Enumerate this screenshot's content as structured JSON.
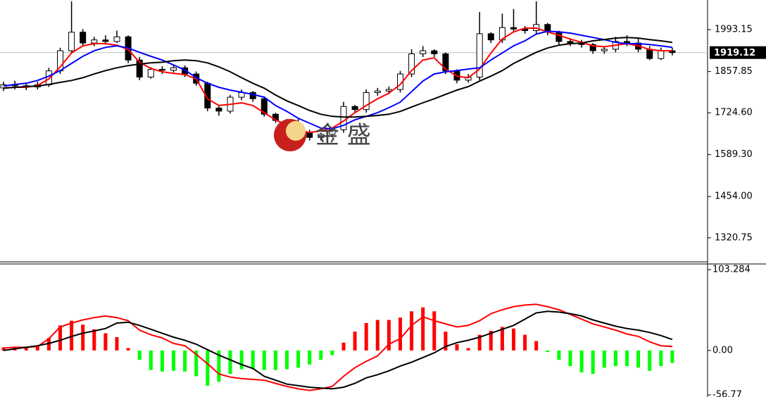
{
  "chart_data": [
    {
      "type": "candlestick",
      "open": [
        1805,
        1815,
        1812,
        1808,
        1815,
        1860,
        1925,
        1985,
        1950,
        1960,
        1955,
        1970,
        1895,
        1840,
        1865,
        1862,
        1870,
        1850,
        1820,
        1740,
        1730,
        1775,
        1790,
        1770,
        1720,
        1700,
        1675,
        1660,
        1645,
        1655,
        1670,
        1745,
        1735,
        1790,
        1795,
        1800,
        1850,
        1915,
        1925,
        1915,
        1860,
        1830,
        1840,
        1980,
        1960,
        2000,
        1995,
        1990,
        2010,
        1985,
        1955,
        1950,
        1945,
        1925,
        1930,
        1955,
        1950,
        1930,
        1900,
        1925
      ],
      "high": [
        1825,
        1828,
        1822,
        1825,
        1870,
        1935,
        2085,
        1995,
        1970,
        1975,
        1990,
        1975,
        1905,
        1872,
        1875,
        1880,
        1878,
        1858,
        1825,
        1748,
        1782,
        1800,
        1795,
        1778,
        1725,
        1705,
        1705,
        1670,
        1660,
        1675,
        1760,
        1750,
        1800,
        1805,
        1810,
        1860,
        1930,
        1940,
        1930,
        1920,
        1865,
        1850,
        2050,
        1985,
        2045,
        2060,
        2005,
        2085,
        2015,
        1990,
        1965,
        1960,
        1950,
        1940,
        1970,
        1975,
        1965,
        1940,
        1935,
        1935
      ],
      "low": [
        1795,
        1800,
        1798,
        1800,
        1808,
        1850,
        1915,
        1940,
        1940,
        1945,
        1950,
        1885,
        1830,
        1835,
        1850,
        1855,
        1840,
        1812,
        1730,
        1715,
        1722,
        1765,
        1760,
        1712,
        1692,
        1665,
        1650,
        1635,
        1635,
        1645,
        1660,
        1725,
        1725,
        1780,
        1785,
        1790,
        1840,
        1905,
        1905,
        1850,
        1820,
        1822,
        1830,
        1950,
        1950,
        1985,
        1980,
        1980,
        1975,
        1945,
        1940,
        1935,
        1915,
        1915,
        1920,
        1940,
        1920,
        1895,
        1895,
        1910
      ],
      "close": [
        1815,
        1812,
        1808,
        1815,
        1860,
        1925,
        1985,
        1950,
        1960,
        1955,
        1970,
        1895,
        1840,
        1865,
        1862,
        1870,
        1850,
        1820,
        1740,
        1730,
        1775,
        1790,
        1770,
        1720,
        1700,
        1675,
        1660,
        1645,
        1655,
        1670,
        1745,
        1735,
        1790,
        1795,
        1800,
        1850,
        1915,
        1925,
        1915,
        1860,
        1830,
        1840,
        1980,
        1960,
        2000,
        1995,
        1990,
        2010,
        1985,
        1955,
        1950,
        1945,
        1925,
        1930,
        1955,
        1950,
        1930,
        1900,
        1925,
        1919.12
      ],
      "bull_color": "#ffffff",
      "bear_color": "#000000",
      "series": [
        {
          "color": "#ff0000",
          "values": [
            1804,
            1807,
            1807,
            1813,
            1834,
            1873,
            1918,
            1941,
            1948,
            1948,
            1943,
            1929,
            1888,
            1868,
            1857,
            1852,
            1848,
            1834,
            1770,
            1748,
            1752,
            1757,
            1748,
            1725,
            1702,
            1684,
            1668,
            1661,
            1666,
            1675,
            1698,
            1725,
            1748,
            1770,
            1788,
            1816,
            1861,
            1895,
            1902,
            1866,
            1843,
            1838,
            1866,
            1918,
            1963,
            1986,
            1998,
            1998,
            1986,
            1975,
            1963,
            1952,
            1941,
            1938,
            1943,
            1948,
            1941,
            1929,
            1925,
            1925
          ]
        },
        {
          "color": "#0000ff",
          "values": [
            1811,
            1816,
            1820,
            1829,
            1843,
            1861,
            1884,
            1907,
            1925,
            1936,
            1941,
            1934,
            1920,
            1907,
            1895,
            1879,
            1863,
            1838,
            1820,
            1807,
            1798,
            1791,
            1784,
            1775,
            1748,
            1729,
            1707,
            1691,
            1675,
            1673,
            1684,
            1702,
            1713,
            1725,
            1741,
            1759,
            1793,
            1827,
            1850,
            1857,
            1861,
            1866,
            1870,
            1895,
            1918,
            1941,
            1957,
            1979,
            1988,
            1986,
            1982,
            1975,
            1968,
            1961,
            1952,
            1948,
            1948,
            1945,
            1941,
            1936
          ]
        },
        {
          "color": "#000000",
          "values": [
            1804,
            1807,
            1809,
            1811,
            1816,
            1823,
            1829,
            1838,
            1850,
            1861,
            1870,
            1877,
            1882,
            1886,
            1888,
            1893,
            1895,
            1893,
            1886,
            1873,
            1857,
            1838,
            1820,
            1804,
            1782,
            1763,
            1748,
            1732,
            1720,
            1713,
            1711,
            1711,
            1713,
            1716,
            1720,
            1729,
            1743,
            1757,
            1770,
            1784,
            1798,
            1809,
            1827,
            1843,
            1861,
            1884,
            1902,
            1920,
            1934,
            1943,
            1948,
            1950,
            1957,
            1961,
            1966,
            1968,
            1966,
            1961,
            1957,
            1952
          ]
        }
      ],
      "last_price": 1919.12,
      "ylim": [
        1243,
        2089
      ],
      "yticks": [
        {
          "value": 1993.15,
          "label": "1993.15"
        },
        {
          "value": 1857.85,
          "label": "1857.85"
        },
        {
          "value": 1724.6,
          "label": "1724.60"
        },
        {
          "value": 1589.3,
          "label": "1589.30"
        },
        {
          "value": 1454,
          "label": "1454.00"
        },
        {
          "value": 1320.75,
          "label": "1320.75"
        }
      ],
      "watermark": "金 盛"
    },
    {
      "type": "macd",
      "histogram": [
        4,
        5,
        4,
        5,
        16,
        32,
        38,
        33,
        27,
        22,
        17,
        3,
        -12,
        -25,
        -27,
        -26,
        -27,
        -33,
        -45,
        -40,
        -30,
        -24,
        -24,
        -25,
        -25,
        -24,
        -22,
        -18,
        -12,
        -6,
        10,
        24,
        35,
        39,
        39,
        42,
        50,
        55,
        50,
        24,
        8,
        3,
        20,
        25,
        30,
        28,
        20,
        12,
        -2,
        -12,
        -20,
        -28,
        -30,
        -22,
        -20,
        -20,
        -22,
        -26,
        -20,
        -16
      ],
      "positive_color": "#ff0000",
      "negative_color": "#00ff00",
      "series": [
        {
          "color": "#ff0000",
          "values": [
            3,
            4,
            4,
            5,
            15,
            30,
            35,
            39,
            42,
            44,
            42,
            38,
            26,
            20,
            16,
            9,
            6,
            -5,
            -17,
            -30,
            -34,
            -36,
            -37,
            -38,
            -42,
            -46,
            -49,
            -51,
            -49,
            -46,
            -33,
            -22,
            -14,
            -7,
            8,
            15,
            32,
            43,
            38,
            34,
            30,
            32,
            38,
            47,
            52,
            56,
            58,
            59,
            56,
            52,
            46,
            40,
            34,
            30,
            26,
            21,
            18,
            11,
            6,
            5
          ]
        },
        {
          "color": "#000000",
          "values": [
            0,
            2,
            4,
            6,
            9,
            13,
            18,
            22,
            25,
            28,
            35,
            36,
            32,
            27,
            22,
            17,
            13,
            8,
            1,
            -6,
            -12,
            -18,
            -23,
            -33,
            -38,
            -43,
            -45,
            -47,
            -48,
            -49,
            -47,
            -42,
            -35,
            -31,
            -26,
            -20,
            -15,
            -9,
            -3,
            5,
            10,
            13,
            17,
            22,
            27,
            32,
            40,
            48,
            50,
            49,
            47,
            44,
            39,
            35,
            31,
            28,
            26,
            23,
            19,
            14
          ]
        }
      ],
      "ylim": [
        -56.77,
        110.5
      ],
      "yticks": [
        103.284,
        {
          "value": 0,
          "label": "0.00"
        },
        -56.77
      ]
    }
  ]
}
